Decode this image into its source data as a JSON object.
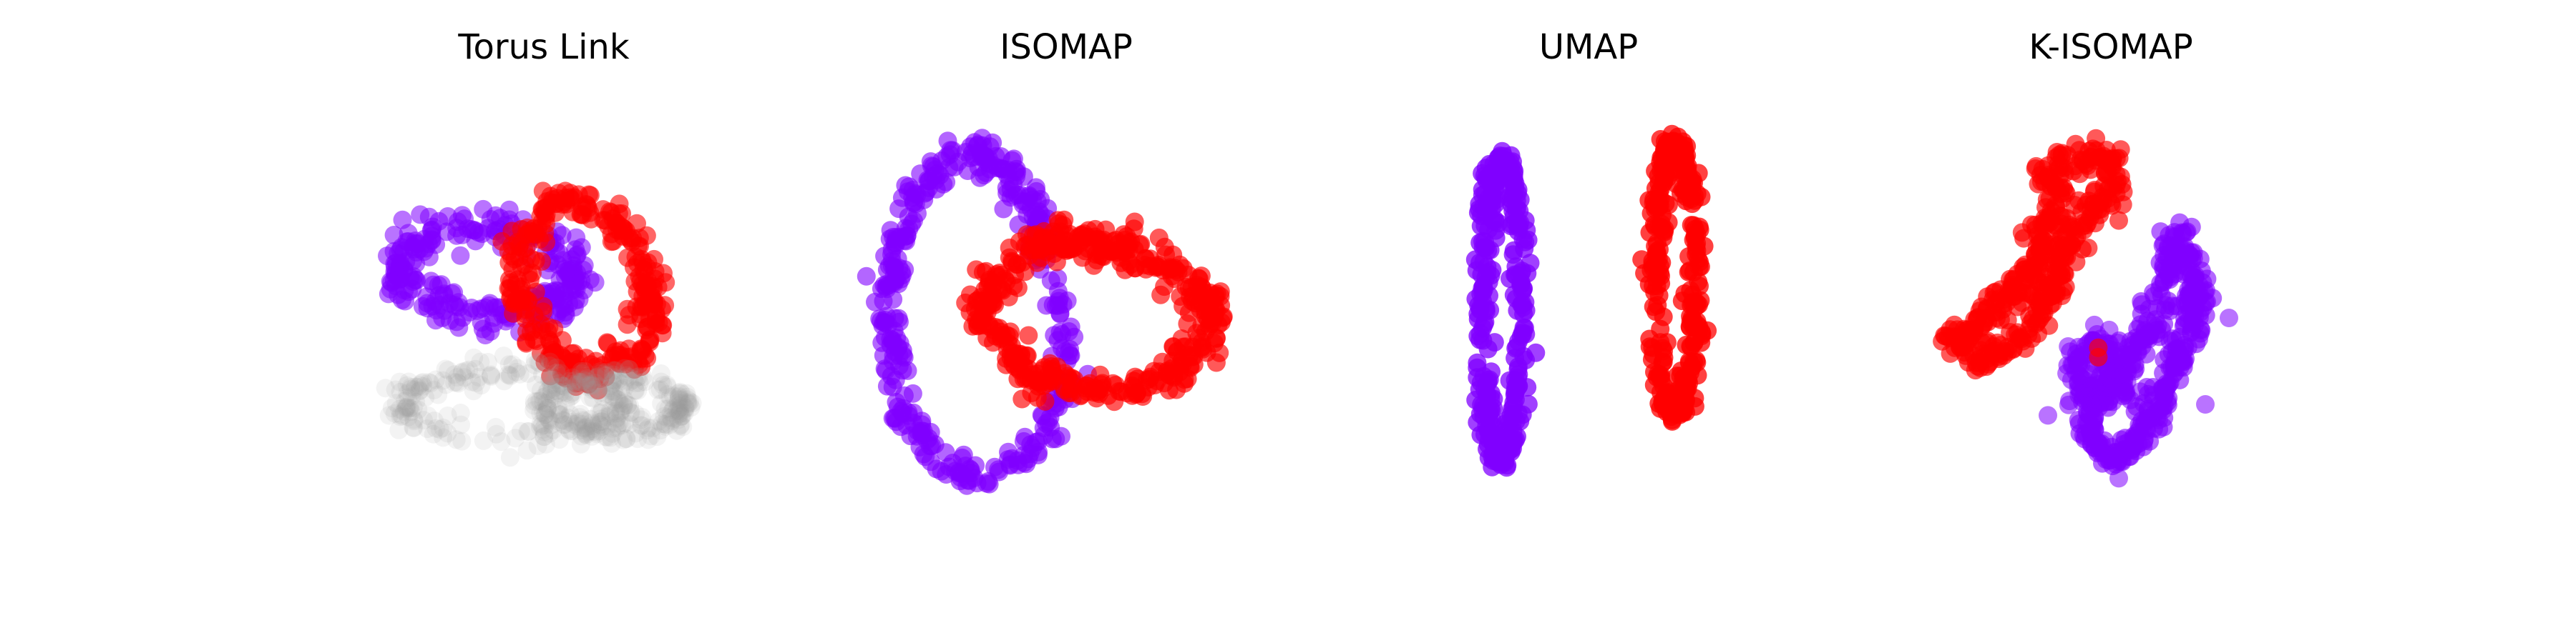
{
  "figure": {
    "background": "#ffffff"
  },
  "colors": {
    "purple": "#8000ff",
    "red": "#ff0000",
    "shadow": "#9a9a9a"
  },
  "chart_data": [
    {
      "type": "scatter",
      "title": "Torus Link",
      "grid": false,
      "axes_visible": false,
      "xlim": [
        -1.6,
        1.6
      ],
      "ylim": [
        -1.6,
        1.6
      ],
      "series": [
        {
          "kind": "ring",
          "color_key": "purple",
          "opacity": 0.55,
          "count": 260,
          "cx": -0.35,
          "cy": 0.3,
          "rx": 0.55,
          "ry": 0.28,
          "rot": -5,
          "thick": 0.12
        },
        {
          "kind": "ring",
          "color_key": "red",
          "opacity": 0.6,
          "count": 300,
          "cx": 0.25,
          "cy": 0.2,
          "rx": 0.4,
          "ry": 0.55,
          "rot": 15,
          "thick": 0.12
        },
        {
          "kind": "ring",
          "color_key": "shadow",
          "opacity": 0.12,
          "count": 220,
          "cx": -0.2,
          "cy": -0.55,
          "rx": 0.7,
          "ry": 0.2,
          "rot": 0,
          "thick": 0.1
        },
        {
          "kind": "ring",
          "color_key": "shadow",
          "opacity": 0.12,
          "count": 220,
          "cx": 0.45,
          "cy": -0.55,
          "rx": 0.45,
          "ry": 0.15,
          "rot": 0,
          "thick": 0.08
        }
      ]
    },
    {
      "type": "scatter",
      "title": "ISOMAP",
      "grid": false,
      "axes_visible": false,
      "xlim": [
        -1.6,
        1.6
      ],
      "ylim": [
        -1.6,
        1.6
      ],
      "series": [
        {
          "kind": "poly",
          "color_key": "purple",
          "opacity": 0.6,
          "count": 380,
          "thick": 0.1,
          "points": [
            [
              -1.15,
              0.15
            ],
            [
              -0.95,
              0.85
            ],
            [
              -0.6,
              1.08
            ],
            [
              -0.25,
              0.75
            ],
            [
              -0.05,
              0.3
            ],
            [
              0.0,
              -0.3
            ],
            [
              -0.1,
              -0.78
            ],
            [
              -0.6,
              -1.05
            ],
            [
              -1.05,
              -0.65
            ],
            [
              -1.15,
              0.15
            ]
          ]
        },
        {
          "kind": "poly",
          "color_key": "red",
          "opacity": 0.65,
          "count": 420,
          "thick": 0.12,
          "points": [
            [
              -0.55,
              0.05
            ],
            [
              -0.25,
              0.45
            ],
            [
              0.2,
              0.5
            ],
            [
              0.6,
              0.35
            ],
            [
              0.95,
              0.05
            ],
            [
              0.75,
              -0.3
            ],
            [
              0.3,
              -0.5
            ],
            [
              -0.2,
              -0.38
            ],
            [
              -0.55,
              0.05
            ]
          ]
        }
      ]
    },
    {
      "type": "scatter",
      "title": "UMAP",
      "grid": false,
      "axes_visible": false,
      "xlim": [
        -1.6,
        1.6
      ],
      "ylim": [
        -1.6,
        1.6
      ],
      "series": [
        {
          "kind": "ring",
          "color_key": "purple",
          "opacity": 0.75,
          "count": 340,
          "cx": -0.55,
          "cy": 0.05,
          "rx": 0.12,
          "ry": 0.95,
          "rot": 0,
          "thick": 0.06
        },
        {
          "kind": "ring",
          "color_key": "red",
          "opacity": 0.75,
          "count": 340,
          "cx": 0.55,
          "cy": 0.25,
          "rx": 0.13,
          "ry": 0.85,
          "rot": 0,
          "thick": 0.06
        }
      ]
    },
    {
      "type": "scatter",
      "title": "K-ISOMAP",
      "grid": false,
      "axes_visible": false,
      "xlim": [
        -1.6,
        1.6
      ],
      "ylim": [
        -1.6,
        1.6
      ],
      "series": [
        {
          "kind": "poly",
          "color_key": "red",
          "opacity": 0.65,
          "count": 380,
          "thick": 0.1,
          "points": [
            [
              -0.35,
              0.95
            ],
            [
              -0.05,
              1.05
            ],
            [
              0.05,
              0.85
            ],
            [
              -0.25,
              0.55
            ],
            [
              -0.35,
              0.3
            ],
            [
              -0.45,
              0.05
            ],
            [
              -0.6,
              -0.15
            ],
            [
              -0.8,
              -0.3
            ],
            [
              -1.0,
              -0.15
            ],
            [
              -0.7,
              0.1
            ],
            [
              -0.5,
              0.35
            ],
            [
              -0.4,
              0.6
            ],
            [
              -0.35,
              0.95
            ]
          ]
        },
        {
          "kind": "poly",
          "color_key": "purple",
          "opacity": 0.6,
          "count": 380,
          "thick": 0.09,
          "points": [
            [
              0.4,
              0.55
            ],
            [
              0.55,
              0.25
            ],
            [
              0.5,
              -0.1
            ],
            [
              0.35,
              -0.4
            ],
            [
              0.2,
              -0.75
            ],
            [
              -0.0,
              -0.9
            ],
            [
              -0.15,
              -0.75
            ],
            [
              -0.05,
              -0.45
            ],
            [
              0.15,
              -0.2
            ],
            [
              0.35,
              0.15
            ],
            [
              0.4,
              0.55
            ]
          ]
        },
        {
          "kind": "poly",
          "color_key": "purple",
          "opacity": 0.55,
          "count": 120,
          "thick": 0.09,
          "points": [
            [
              -0.25,
              -0.3
            ],
            [
              -0.05,
              -0.15
            ],
            [
              0.1,
              -0.45
            ],
            [
              -0.15,
              -0.55
            ],
            [
              -0.25,
              -0.3
            ]
          ]
        },
        {
          "kind": "points",
          "color_key": "red",
          "opacity": 0.65,
          "pts": [
            [
              0.05,
              0.62
            ],
            [
              -0.08,
              -0.25
            ],
            [
              -0.08,
              -0.19
            ]
          ]
        },
        {
          "kind": "points",
          "color_key": "purple",
          "opacity": 0.55,
          "pts": [
            [
              0.75,
              0.0
            ],
            [
              0.6,
              -0.55
            ],
            [
              -0.4,
              -0.62
            ],
            [
              0.05,
              -1.02
            ]
          ]
        }
      ]
    }
  ]
}
